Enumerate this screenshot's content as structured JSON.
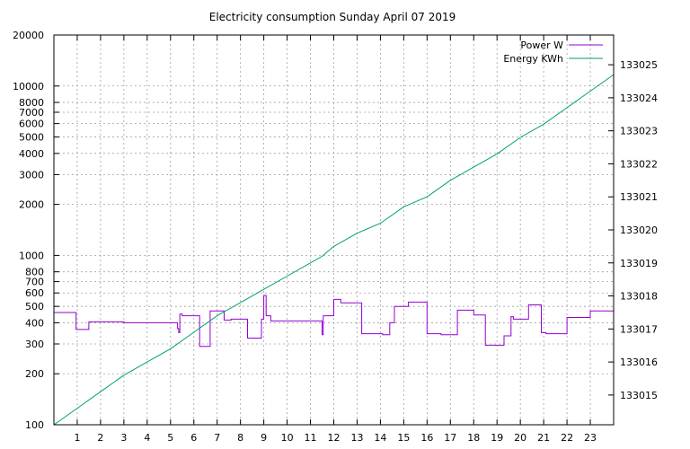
{
  "chart_data": {
    "type": "line",
    "title": "Electricity consumption Sunday April 07 2019",
    "x": {
      "range": [
        0,
        24
      ],
      "tick_values": [
        1,
        2,
        3,
        4,
        5,
        6,
        7,
        8,
        9,
        10,
        11,
        12,
        13,
        14,
        15,
        16,
        17,
        18,
        19,
        20,
        21,
        22,
        23
      ],
      "tick_labels": [
        "1",
        "2",
        "3",
        "4",
        "5",
        "6",
        "7",
        "8",
        "9",
        "10",
        "11",
        "12",
        "13",
        "14",
        "15",
        "16",
        "17",
        "18",
        "19",
        "20",
        "21",
        "22",
        "23"
      ]
    },
    "y_left": {
      "scale": "log",
      "range": [
        100,
        20000
      ],
      "tick_values": [
        100,
        200,
        300,
        400,
        500,
        600,
        700,
        800,
        1000,
        2000,
        3000,
        4000,
        5000,
        6000,
        7000,
        8000,
        10000,
        20000
      ],
      "tick_labels": [
        "100",
        "200",
        "300",
        "400",
        "500",
        "600",
        "700",
        "800",
        "1000",
        "2000",
        "3000",
        "4000",
        "5000",
        "6000",
        "7000",
        "8000",
        "10000",
        "20000"
      ]
    },
    "y_right": {
      "scale": "linear",
      "range": [
        133014.1,
        133025.9
      ],
      "tick_values": [
        133015,
        133016,
        133017,
        133018,
        133019,
        133020,
        133021,
        133022,
        133023,
        133024,
        133025
      ],
      "tick_labels": [
        "133015",
        "133016",
        "133017",
        "133018",
        "133019",
        "133020",
        "133021",
        "133022",
        "133023",
        "133024",
        "133025"
      ]
    },
    "grid": true,
    "legend_position": "top-right",
    "series": [
      {
        "name": "Power W",
        "axis": "left",
        "color": "#9400d3",
        "step": true,
        "x": [
          0,
          0.95,
          1.5,
          3,
          5.3,
          5.35,
          5.4,
          5.5,
          6,
          6.25,
          6.7,
          7.3,
          7.6,
          8.3,
          8.9,
          9,
          9.1,
          9.3,
          10.8,
          11.5,
          11.55,
          12,
          12.3,
          13.2,
          14.1,
          14.4,
          14.6,
          15.2,
          16,
          16.6,
          17.3,
          18,
          18.5,
          19.3,
          19.6,
          19.7,
          20.35,
          20.9,
          21.1,
          22,
          23,
          24
        ],
        "y": [
          460,
          365,
          405,
          400,
          370,
          350,
          450,
          440,
          440,
          290,
          470,
          415,
          420,
          325,
          420,
          580,
          440,
          410,
          410,
          340,
          440,
          550,
          525,
          345,
          340,
          400,
          500,
          530,
          345,
          340,
          475,
          445,
          295,
          335,
          435,
          420,
          510,
          350,
          345,
          430,
          470,
          460
        ]
      },
      {
        "name": "Energy KWh",
        "axis": "right",
        "color": "#009e73",
        "x": [
          0,
          1,
          2,
          3,
          4,
          5,
          6,
          7,
          8,
          9,
          10,
          11,
          11.5,
          12,
          13,
          14,
          15,
          16,
          17,
          18,
          19,
          20,
          21,
          22,
          23,
          24
        ],
        "y": [
          133014.1,
          133014.6,
          133015.1,
          133015.6,
          133016.0,
          133016.4,
          133016.9,
          133017.4,
          133017.8,
          133018.2,
          133018.6,
          133019.0,
          133019.2,
          133019.5,
          133019.9,
          133020.2,
          133020.7,
          133021.0,
          133021.5,
          133021.9,
          133022.3,
          133022.8,
          133023.2,
          133023.7,
          133024.2,
          133024.7
        ]
      }
    ]
  }
}
